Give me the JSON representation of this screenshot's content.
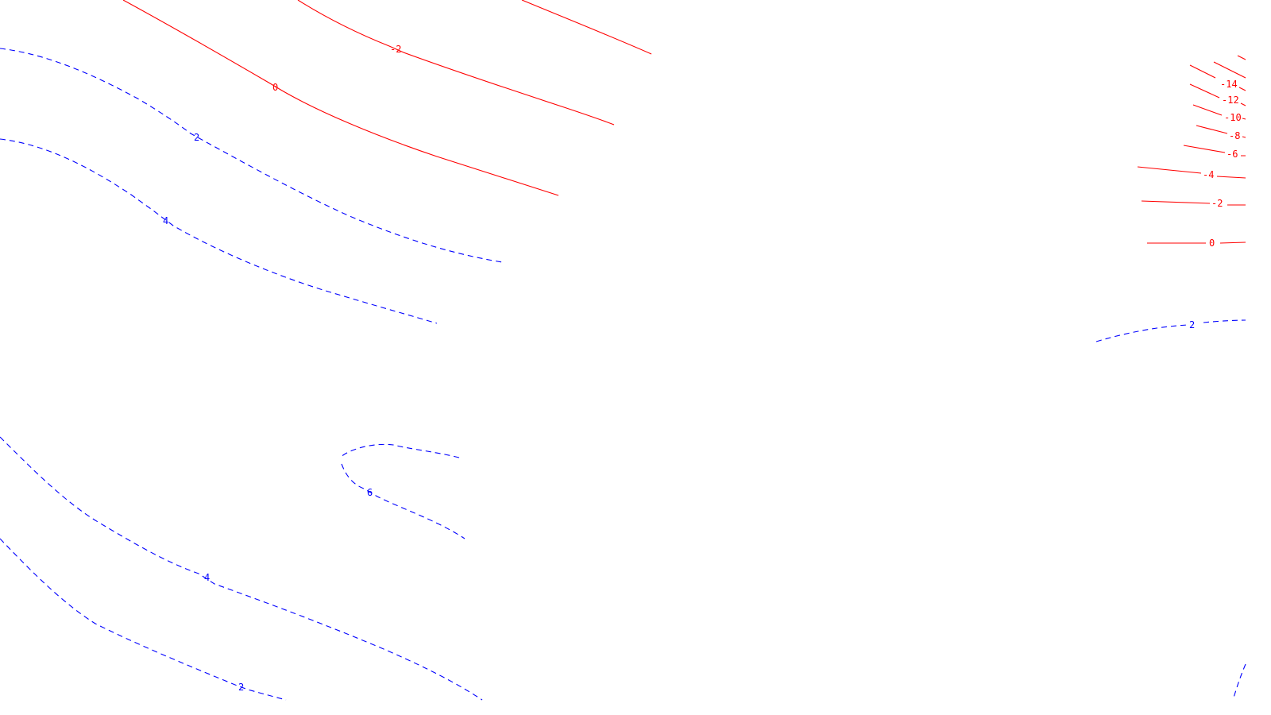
{
  "colors": {
    "negative_contours": "#ff0000",
    "positive_contours": "#0000ff",
    "background": "#ffffff"
  },
  "contour_labels": {
    "top_0": "0",
    "top_neg2": "-2",
    "left_pos2": "2",
    "left_pos4": "4",
    "mid_pos6": "6",
    "bottom_pos4": "4",
    "bottom_pos2": "2",
    "right_neg14": "-14",
    "right_neg12": "-12",
    "right_neg10": "-10",
    "right_neg8": "-8",
    "right_neg6": "-6",
    "right_neg4": "-4",
    "right_neg2": "-2",
    "right_0": "0",
    "right_pos2": "2"
  }
}
